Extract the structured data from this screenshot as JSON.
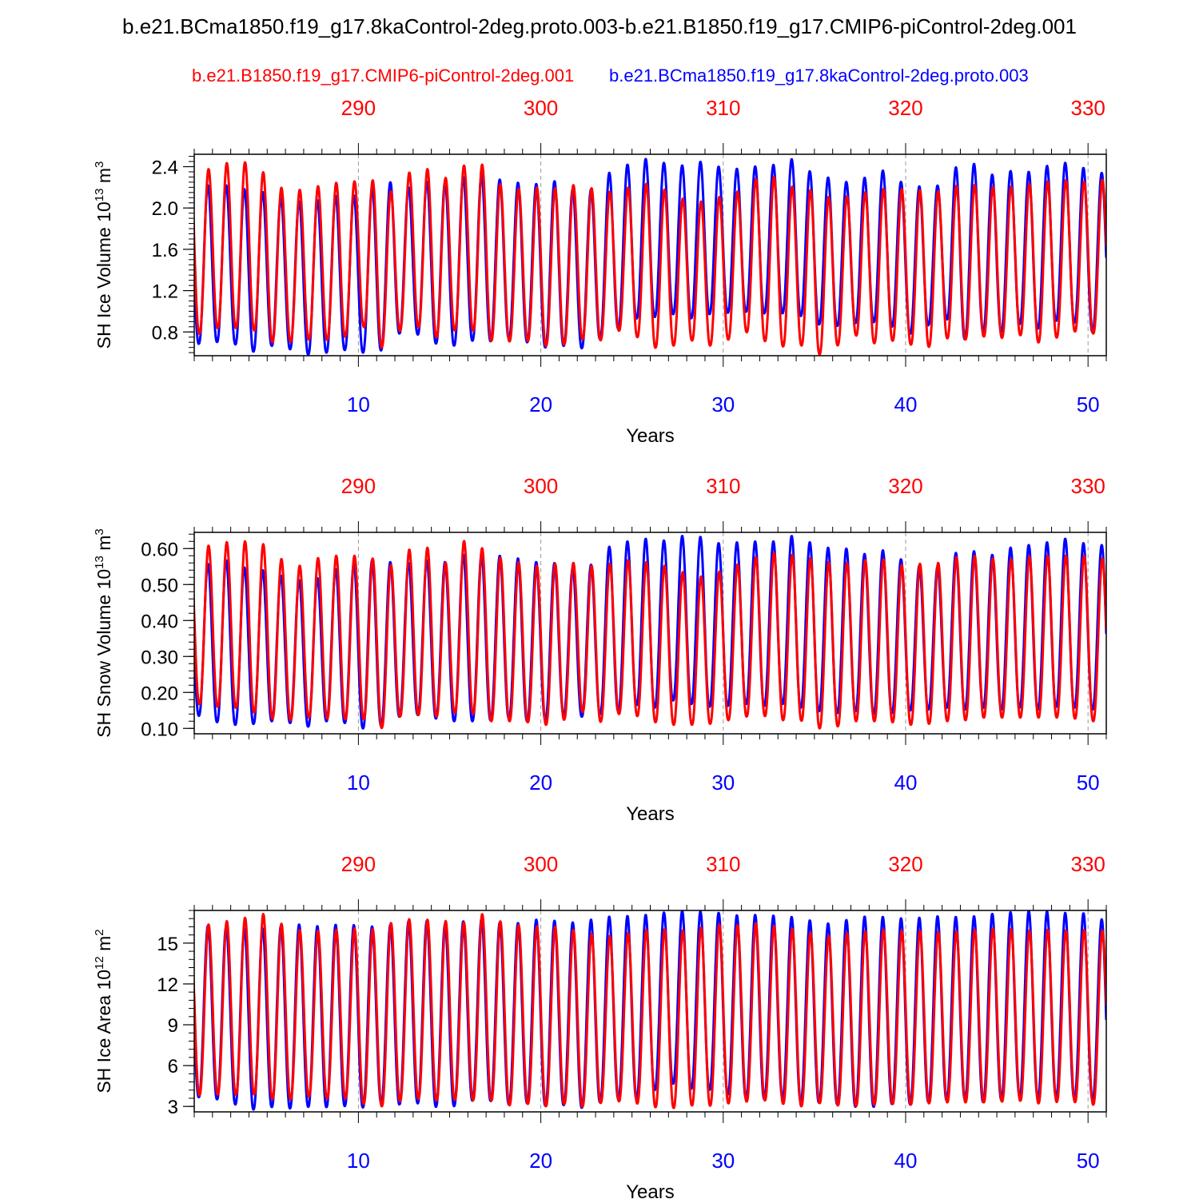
{
  "title": "b.e21.BCma1850.f19_g17.8kaControl-2deg.proto.003-b.e21.B1850.f19_g17.CMIP6-piControl-2deg.001",
  "legend": {
    "red_case": "b.e21.B1850.f19_g17.CMIP6-piControl-2deg.001",
    "blue_case": "b.e21.BCma1850.f19_g17.8kaControl-2deg.proto.003"
  },
  "colors": {
    "case_red": "#ff0000",
    "case_blue": "#0000ff",
    "grid": "#999999"
  },
  "chart_data": [
    {
      "type": "line",
      "ylabel": "SH Ice Volume",
      "units": "10^13 m^3",
      "xlabel": "Years",
      "xlim": [
        1,
        51
      ],
      "x_ticks_bottom": [
        10,
        20,
        30,
        40,
        50
      ],
      "x_ticks_top": [
        290,
        300,
        310,
        320,
        330
      ],
      "ylim": [
        0.57,
        2.52
      ],
      "y_ticks": [
        "0.8",
        "1.2",
        "1.6",
        "2.0",
        "2.4"
      ],
      "y_minor_step": 0.05,
      "series": [
        {
          "name": "b.e21.BCma1850.f19_g17.8kaControl-2deg.proto.003",
          "color": "#0000ff",
          "annual_max": [
            2.22,
            2.22,
            2.22,
            2.17,
            2.15,
            2.08,
            2.06,
            2.08,
            2.13,
            2.12,
            2.22,
            2.26,
            2.18,
            2.28,
            2.24,
            2.32,
            2.32,
            2.26,
            2.24,
            2.23,
            2.27,
            2.15,
            2.19,
            2.39,
            2.43,
            2.49,
            2.42,
            2.41,
            2.46,
            2.38,
            2.38,
            2.41,
            2.42,
            2.49,
            2.31,
            2.29,
            2.24,
            2.31,
            2.38,
            2.21,
            2.21,
            2.22,
            2.45,
            2.42,
            2.29,
            2.38,
            2.34,
            2.43,
            2.44,
            2.37,
            2.33
          ],
          "annual_min": [
            0.68,
            0.7,
            0.71,
            0.59,
            0.67,
            0.65,
            0.58,
            0.59,
            0.63,
            0.61,
            0.57,
            0.78,
            0.8,
            0.7,
            0.65,
            0.72,
            0.7,
            0.74,
            0.72,
            0.64,
            0.68,
            0.62,
            0.71,
            0.8,
            0.93,
            0.93,
            0.99,
            0.92,
            0.97,
            0.98,
            1.0,
            0.98,
            0.98,
            0.98,
            0.88,
            0.85,
            0.88,
            0.9,
            0.88,
            0.77,
            0.82,
            1.0,
            0.7,
            0.82,
            0.77,
            0.9,
            0.81,
            0.9,
            0.93,
            0.78,
            0.85
          ]
        },
        {
          "name": "b.e21.B1850.f19_g17.CMIP6-piControl-2deg.001",
          "color": "#ff0000",
          "annual_max": [
            2.36,
            2.38,
            2.45,
            2.44,
            2.32,
            2.16,
            2.18,
            2.22,
            2.25,
            2.26,
            2.27,
            2.13,
            2.4,
            2.37,
            2.27,
            2.45,
            2.41,
            2.18,
            2.19,
            2.2,
            2.19,
            2.23,
            2.18,
            2.15,
            2.21,
            2.24,
            2.16,
            2.07,
            2.06,
            2.12,
            2.17,
            2.31,
            2.3,
            2.18,
            2.17,
            2.09,
            2.12,
            2.16,
            2.19,
            2.18,
            2.17,
            2.16,
            2.23,
            2.22,
            2.2,
            2.21,
            2.24,
            2.26,
            2.27,
            2.25,
            2.28
          ],
          "annual_min": [
            0.76,
            0.84,
            0.83,
            0.86,
            0.7,
            0.7,
            0.72,
            0.74,
            0.68,
            0.95,
            0.6,
            0.78,
            0.89,
            0.73,
            0.8,
            0.85,
            0.72,
            0.7,
            0.73,
            0.67,
            0.65,
            0.75,
            0.68,
            0.82,
            0.79,
            0.65,
            0.64,
            0.74,
            0.66,
            0.69,
            0.82,
            0.74,
            0.64,
            0.71,
            0.57,
            0.62,
            0.8,
            0.68,
            0.72,
            0.7,
            0.62,
            0.75,
            0.71,
            0.77,
            0.72,
            0.8,
            0.69,
            0.72,
            0.81,
            0.79,
            0.77
          ]
        }
      ]
    },
    {
      "type": "line",
      "ylabel": "SH Snow Volume",
      "units": "10^13 m^3",
      "xlabel": "Years",
      "xlim": [
        1,
        51
      ],
      "x_ticks_bottom": [
        10,
        20,
        30,
        40,
        50
      ],
      "x_ticks_top": [
        290,
        300,
        310,
        320,
        330
      ],
      "ylim": [
        0.085,
        0.645
      ],
      "y_ticks": [
        "0.10",
        "0.20",
        "0.30",
        "0.40",
        "0.50",
        "0.60"
      ],
      "y_minor_step": 0.02,
      "series": [
        {
          "name": "b.e21.BCma1850.f19_g17.8kaControl-2deg.proto.003",
          "color": "#0000ff",
          "annual_max": [
            0.55,
            0.56,
            0.57,
            0.54,
            0.54,
            0.52,
            0.51,
            0.52,
            0.55,
            0.56,
            0.57,
            0.56,
            0.56,
            0.57,
            0.56,
            0.59,
            0.58,
            0.58,
            0.57,
            0.56,
            0.56,
            0.54,
            0.56,
            0.62,
            0.62,
            0.63,
            0.62,
            0.64,
            0.63,
            0.61,
            0.62,
            0.62,
            0.62,
            0.64,
            0.61,
            0.6,
            0.6,
            0.58,
            0.6,
            0.56,
            0.55,
            0.55,
            0.6,
            0.59,
            0.58,
            0.61,
            0.61,
            0.62,
            0.63,
            0.61,
            0.61
          ],
          "annual_min": [
            0.14,
            0.12,
            0.11,
            0.11,
            0.12,
            0.12,
            0.1,
            0.12,
            0.12,
            0.1,
            0.1,
            0.13,
            0.14,
            0.13,
            0.12,
            0.12,
            0.12,
            0.13,
            0.12,
            0.12,
            0.14,
            0.13,
            0.14,
            0.14,
            0.17,
            0.15,
            0.18,
            0.17,
            0.16,
            0.16,
            0.17,
            0.16,
            0.17,
            0.16,
            0.15,
            0.14,
            0.15,
            0.14,
            0.14,
            0.15,
            0.15,
            0.16,
            0.15,
            0.16,
            0.15,
            0.16,
            0.15,
            0.16,
            0.16,
            0.15,
            0.16
          ]
        },
        {
          "name": "b.e21.B1850.f19_g17.CMIP6-piControl-2deg.001",
          "color": "#ff0000",
          "annual_max": [
            0.6,
            0.61,
            0.62,
            0.62,
            0.61,
            0.56,
            0.55,
            0.58,
            0.58,
            0.58,
            0.57,
            0.55,
            0.61,
            0.6,
            0.55,
            0.64,
            0.59,
            0.57,
            0.56,
            0.55,
            0.56,
            0.56,
            0.55,
            0.56,
            0.57,
            0.56,
            0.55,
            0.53,
            0.52,
            0.54,
            0.56,
            0.58,
            0.59,
            0.58,
            0.57,
            0.56,
            0.56,
            0.57,
            0.57,
            0.55,
            0.56,
            0.56,
            0.58,
            0.58,
            0.57,
            0.57,
            0.58,
            0.58,
            0.58,
            0.58,
            0.57
          ],
          "annual_min": [
            0.17,
            0.16,
            0.16,
            0.15,
            0.13,
            0.12,
            0.13,
            0.13,
            0.12,
            0.14,
            0.09,
            0.13,
            0.14,
            0.13,
            0.14,
            0.15,
            0.12,
            0.12,
            0.12,
            0.11,
            0.11,
            0.16,
            0.11,
            0.14,
            0.14,
            0.12,
            0.11,
            0.11,
            0.11,
            0.12,
            0.13,
            0.14,
            0.12,
            0.13,
            0.1,
            0.1,
            0.12,
            0.12,
            0.12,
            0.11,
            0.11,
            0.12,
            0.12,
            0.13,
            0.13,
            0.13,
            0.13,
            0.13,
            0.13,
            0.12,
            0.12
          ]
        }
      ]
    },
    {
      "type": "line",
      "ylabel": "SH Ice Area",
      "units": "10^12 m^2",
      "xlabel": "Years",
      "xlim": [
        1,
        51
      ],
      "x_ticks_bottom": [
        10,
        20,
        30,
        40,
        50
      ],
      "x_ticks_top": [
        290,
        300,
        310,
        320,
        330
      ],
      "ylim": [
        2.6,
        17.4
      ],
      "y_ticks": [
        "3",
        "6",
        "9",
        "12",
        "15"
      ],
      "y_minor_step": 0.6,
      "series": [
        {
          "name": "b.e21.BCma1850.f19_g17.8kaControl-2deg.proto.003",
          "color": "#0000ff",
          "annual_max": [
            16.2,
            16.3,
            16.2,
            16.0,
            16.1,
            16.3,
            16.4,
            16.2,
            16.4,
            16.3,
            16.2,
            16.4,
            16.7,
            16.6,
            16.3,
            16.7,
            16.8,
            16.4,
            16.5,
            16.8,
            16.6,
            16.5,
            16.8,
            17.0,
            17.0,
            17.1,
            17.3,
            17.4,
            17.3,
            17.2,
            17.0,
            17.1,
            17.0,
            16.9,
            16.6,
            16.4,
            16.8,
            17.0,
            16.9,
            16.8,
            16.9,
            17.0,
            16.9,
            17.0,
            17.2,
            17.3,
            17.4,
            17.3,
            17.2,
            17.2,
            16.6
          ],
          "annual_min": [
            3.7,
            3.6,
            3.3,
            2.7,
            3.0,
            2.8,
            3.0,
            2.9,
            3.1,
            2.8,
            3.3,
            3.1,
            3.3,
            3.0,
            2.9,
            3.4,
            3.5,
            3.1,
            3.3,
            3.0,
            3.2,
            2.8,
            3.2,
            3.6,
            3.4,
            4.0,
            4.8,
            4.3,
            4.3,
            4.0,
            3.6,
            3.5,
            3.7,
            3.4,
            3.3,
            3.2,
            3.0,
            2.9,
            3.2,
            3.1,
            3.3,
            3.4,
            3.6,
            3.3,
            3.4,
            3.8,
            3.6,
            3.7,
            3.6,
            3.5,
            3.4
          ]
        },
        {
          "name": "b.e21.B1850.f19_g17.CMIP6-piControl-2deg.001",
          "color": "#ff0000",
          "annual_max": [
            16.6,
            16.3,
            16.7,
            16.9,
            17.2,
            16.2,
            15.9,
            15.9,
            16.0,
            16.1,
            16.0,
            16.6,
            16.8,
            16.7,
            16.6,
            16.5,
            17.3,
            16.4,
            16.3,
            16.2,
            16.2,
            15.9,
            15.6,
            15.5,
            15.8,
            16.0,
            16.0,
            15.9,
            16.2,
            16.4,
            16.3,
            16.5,
            16.2,
            16.0,
            15.7,
            15.5,
            15.8,
            15.9,
            16.0,
            15.9,
            15.9,
            15.8,
            15.9,
            16.0,
            16.1,
            16.0,
            15.9,
            16.0,
            15.9,
            16.0,
            15.9
          ],
          "annual_min": [
            3.8,
            3.9,
            3.8,
            4.0,
            3.6,
            3.4,
            3.8,
            3.5,
            3.7,
            3.3,
            2.9,
            3.3,
            3.6,
            3.4,
            3.5,
            3.4,
            3.6,
            3.0,
            3.3,
            2.9,
            3.3,
            2.9,
            3.2,
            3.4,
            3.3,
            3.0,
            2.8,
            3.1,
            3.0,
            3.2,
            3.3,
            3.5,
            3.3,
            2.9,
            3.3,
            3.1,
            3.0,
            3.1,
            3.2,
            3.1,
            3.2,
            3.3,
            3.3,
            3.3,
            3.3,
            3.5,
            3.2,
            3.3,
            3.4,
            3.1,
            3.2
          ]
        }
      ]
    }
  ]
}
